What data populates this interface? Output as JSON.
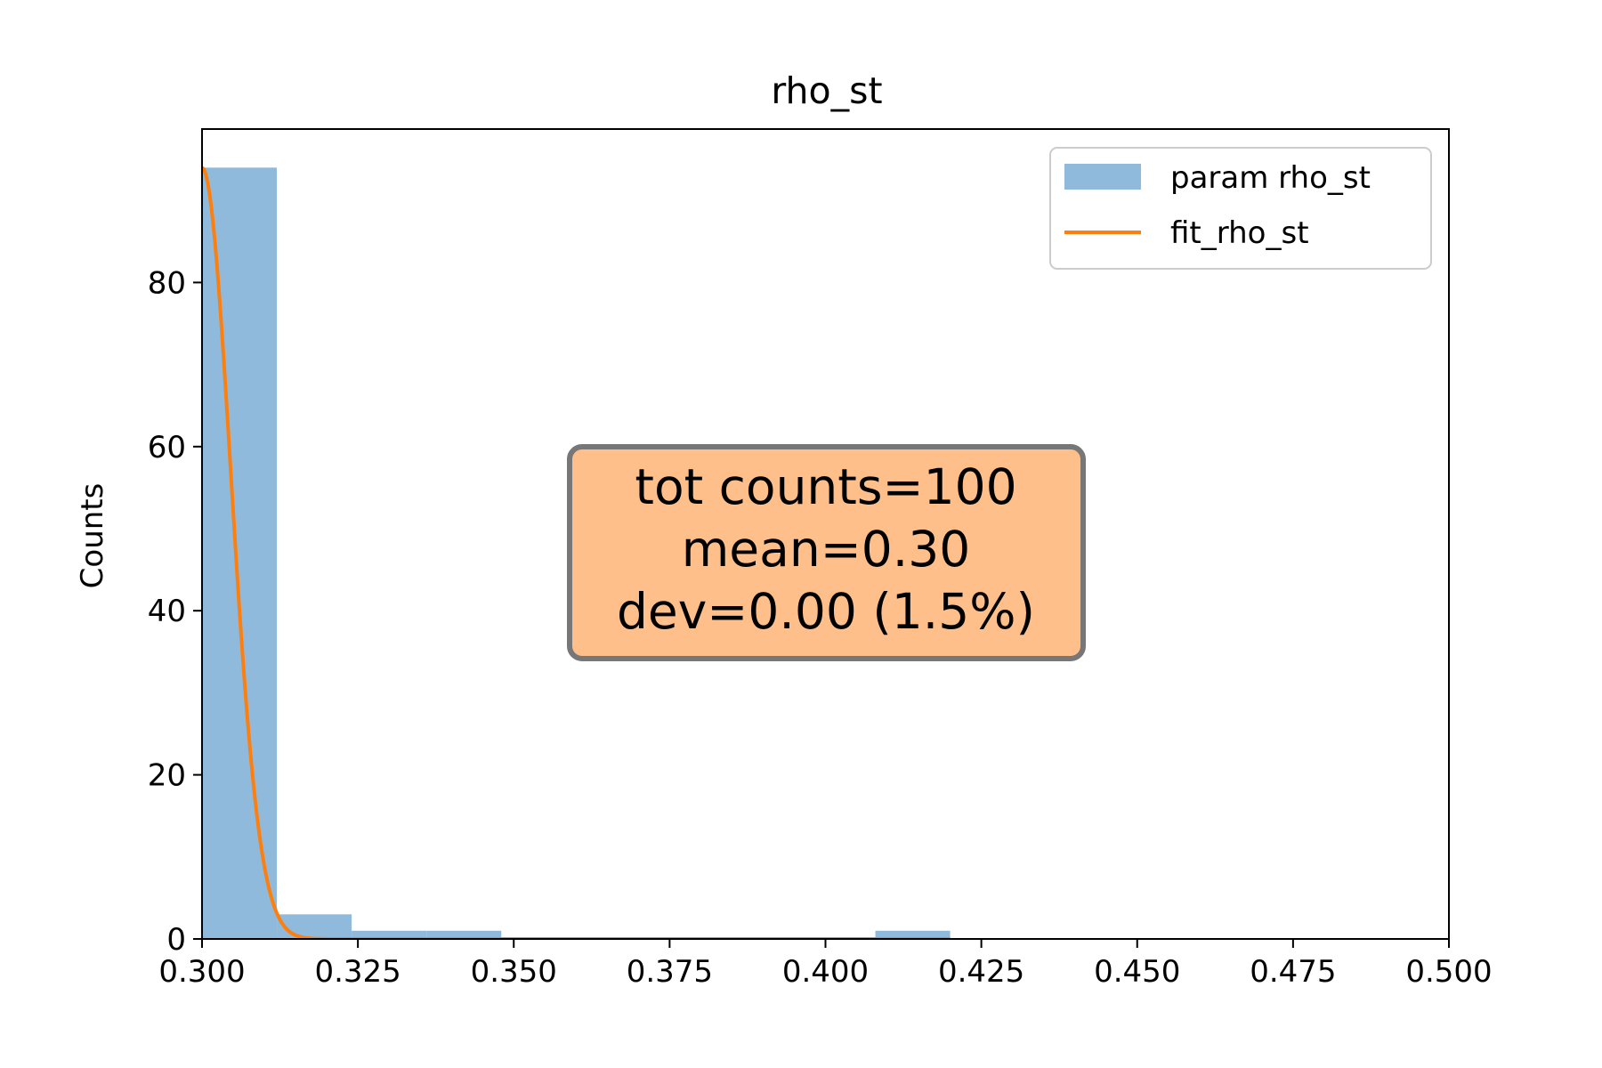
{
  "chart_data": {
    "type": "bar",
    "title": "rho_st",
    "xlabel": "",
    "ylabel": "Counts",
    "xlim": [
      0.3,
      0.5
    ],
    "ylim": [
      0,
      98.7
    ],
    "x_ticks": [
      "0.300",
      "0.325",
      "0.350",
      "0.375",
      "0.400",
      "0.425",
      "0.450",
      "0.475",
      "0.500"
    ],
    "y_ticks": [
      "0",
      "20",
      "40",
      "60",
      "80"
    ],
    "grid": false,
    "legend_position": "top-right",
    "histogram": {
      "name": "param rho_st",
      "color": "#8fbadc",
      "bin_width": 0.012,
      "bins": [
        {
          "start": 0.3,
          "end": 0.312,
          "count": 94
        },
        {
          "start": 0.312,
          "end": 0.324,
          "count": 3
        },
        {
          "start": 0.324,
          "end": 0.336,
          "count": 1
        },
        {
          "start": 0.336,
          "end": 0.348,
          "count": 1
        },
        {
          "start": 0.408,
          "end": 0.42,
          "count": 1
        }
      ]
    },
    "fit": {
      "name": "fit_rho_st",
      "color": "#ff7f0e",
      "type": "gaussian",
      "peak": 94,
      "mean": 0.3,
      "sigma": 0.0046
    },
    "stats_box": {
      "lines": [
        "tot counts=100",
        "mean=0.30",
        "dev=0.00 (1.5%)"
      ],
      "fill_color": "#ffbf8a",
      "edge_color": "#777777"
    }
  }
}
